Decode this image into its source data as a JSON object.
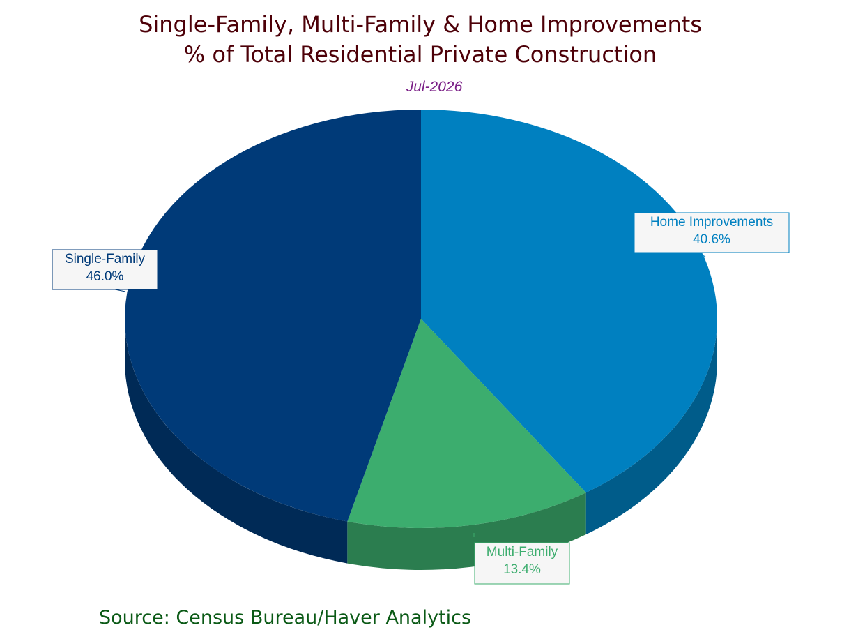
{
  "chart_data": {
    "type": "pie",
    "title": [
      "Single-Family, Multi-Family & Home Improvements",
      "% of Total Residential Private Construction"
    ],
    "subtitle": "Jul-2026",
    "categories": [
      "Home Improvements",
      "Multi-Family",
      "Single-Family"
    ],
    "values": [
      40.6,
      13.4,
      46.0
    ],
    "value_labels": [
      "40.6%",
      "13.4%",
      "46.0%"
    ],
    "colors": [
      "#0080c0",
      "#3cad6e",
      "#003a78"
    ],
    "source": "Source: Census Bureau/Haver Analytics"
  }
}
